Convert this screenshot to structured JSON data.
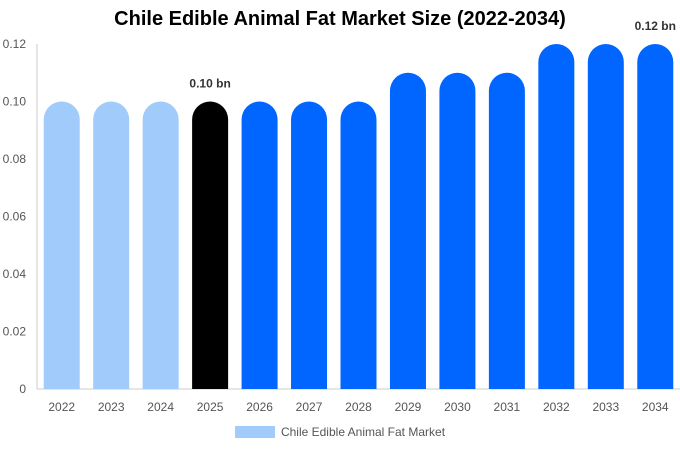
{
  "chart_data": {
    "type": "bar",
    "title": "Chile Edible Animal Fat Market Size (2022-2034)",
    "categories": [
      "2022",
      "2023",
      "2024",
      "2025",
      "2026",
      "2027",
      "2028",
      "2029",
      "2030",
      "2031",
      "2032",
      "2033",
      "2034"
    ],
    "series": [
      {
        "name": "Chile Edible Animal Fat Market",
        "values": [
          0.1,
          0.1,
          0.1,
          0.1,
          0.1,
          0.1,
          0.1,
          0.11,
          0.11,
          0.11,
          0.12,
          0.12,
          0.12
        ]
      }
    ],
    "bar_colors": [
      "#a0cbfb",
      "#a0cbfb",
      "#a0cbfb",
      "#000000",
      "#0066ff",
      "#0066ff",
      "#0066ff",
      "#0066ff",
      "#0066ff",
      "#0066ff",
      "#0066ff",
      "#0066ff",
      "#0066ff"
    ],
    "data_labels": [
      {
        "category": "2025",
        "text": "0.10 bn"
      },
      {
        "category": "2034",
        "text": "0.12 bn"
      }
    ],
    "yticks": [
      "0",
      "0.02",
      "0.04",
      "0.06",
      "0.08",
      "0.10",
      "0.12"
    ],
    "ylim": [
      0,
      0.12
    ],
    "xlabel": "",
    "ylabel": "",
    "legend": {
      "label": "Chile Edible Animal Fat Market",
      "color": "#a0cbfb",
      "position": "bottom-center"
    }
  }
}
